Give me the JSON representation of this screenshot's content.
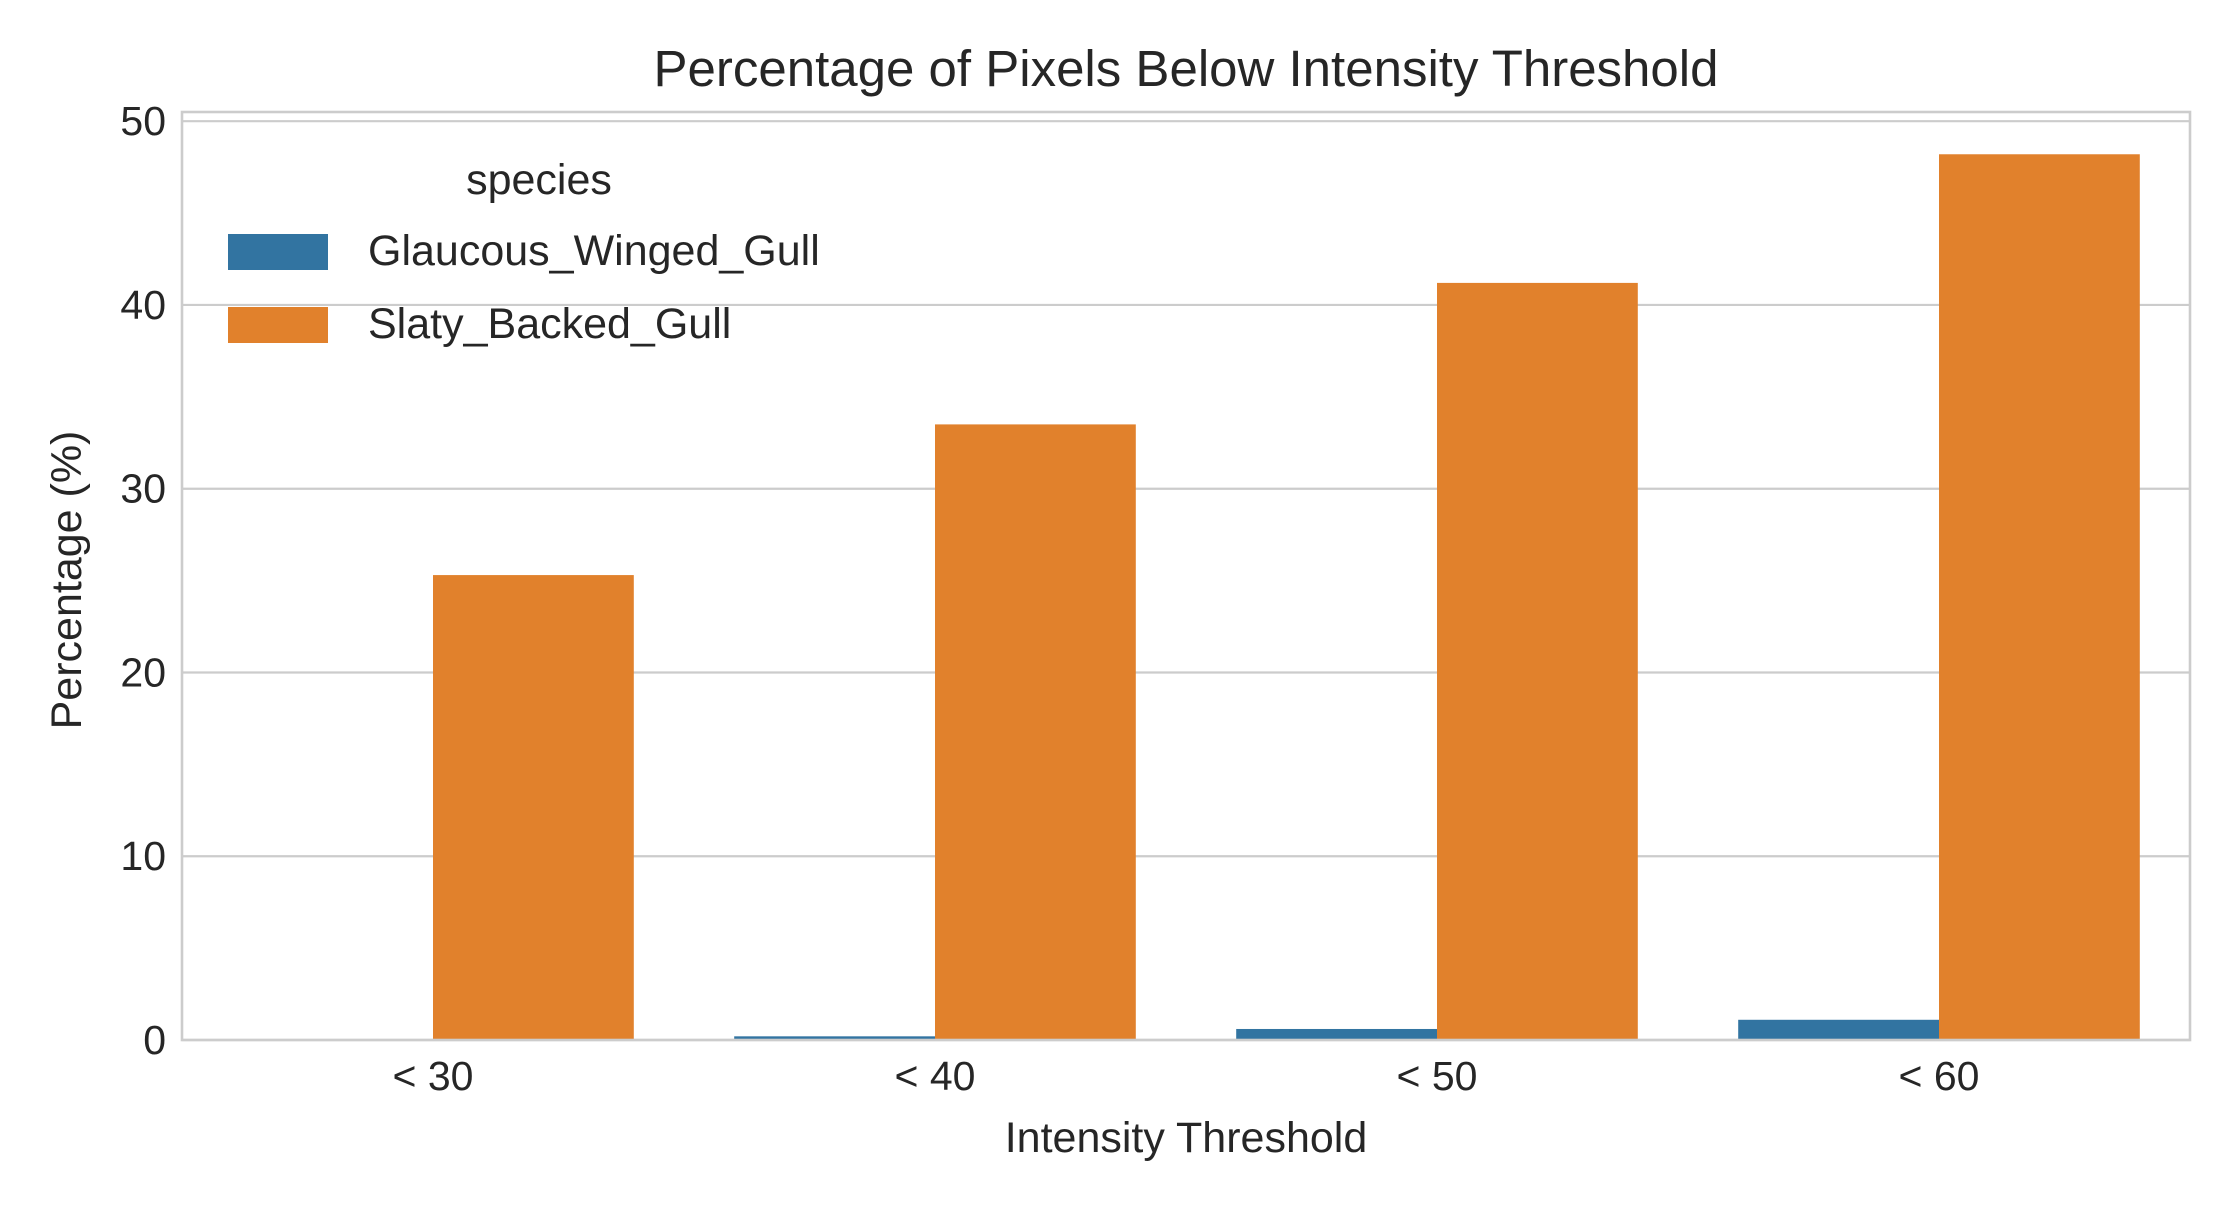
{
  "chart_data": {
    "type": "bar",
    "title": "Percentage of Pixels Below Intensity Threshold",
    "xlabel": "Intensity Threshold",
    "ylabel": "Percentage (%)",
    "categories": [
      "< 30",
      "< 40",
      "< 50",
      "< 60"
    ],
    "ylim": [
      0,
      50.5
    ],
    "yticks": [
      0,
      10,
      20,
      30,
      40,
      50
    ],
    "grid": "horizontal",
    "legend": {
      "title": "species",
      "placement": "top-left"
    },
    "series": [
      {
        "name": "Glaucous_Winged_Gull",
        "color": "#3274a1",
        "values": [
          0.0,
          0.2,
          0.6,
          1.1
        ]
      },
      {
        "name": "Slaty_Backed_Gull",
        "color": "#e1812c",
        "values": [
          25.3,
          33.5,
          41.2,
          48.2
        ]
      }
    ]
  }
}
